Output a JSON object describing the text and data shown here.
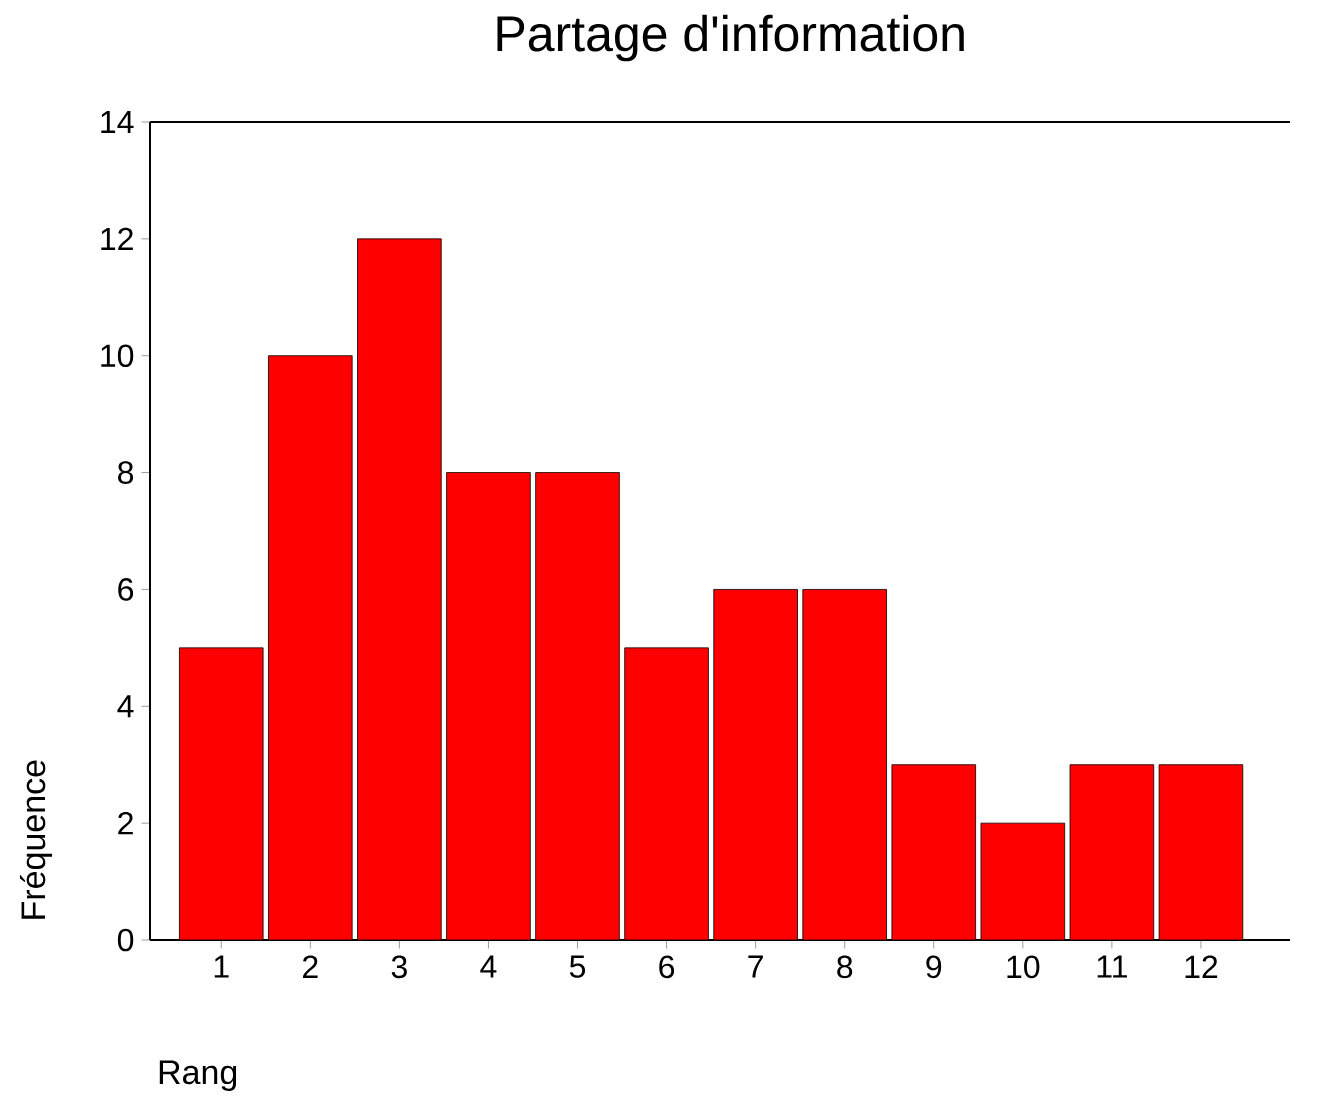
{
  "chart_data": {
    "type": "bar",
    "title": "Partage d'information",
    "xlabel": "Rang",
    "ylabel": "Fréquence",
    "categories": [
      "1",
      "2",
      "3",
      "4",
      "5",
      "6",
      "7",
      "8",
      "9",
      "10",
      "11",
      "12"
    ],
    "values": [
      5,
      10,
      12,
      8,
      8,
      5,
      6,
      6,
      3,
      2,
      3,
      3
    ],
    "color": "#ff0000",
    "ylim": [
      0,
      14
    ],
    "yticks": [
      0,
      2,
      4,
      6,
      8,
      10,
      12,
      14
    ]
  }
}
